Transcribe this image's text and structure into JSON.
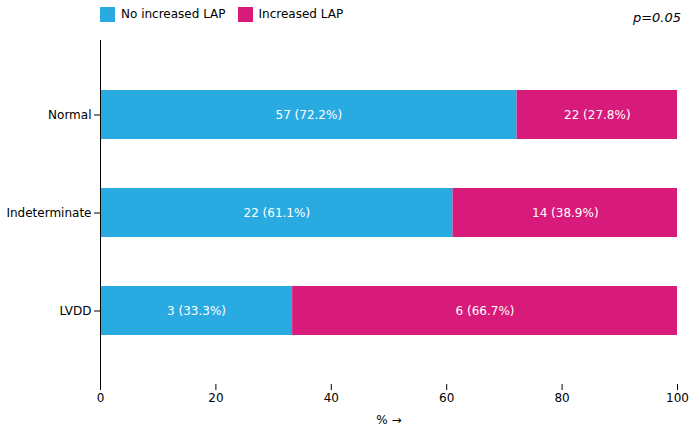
{
  "chart_data": {
    "type": "bar",
    "orientation": "horizontal",
    "stacked": true,
    "categories": [
      "Normal",
      "Indeterminate",
      "LVDD"
    ],
    "series": [
      {
        "name": "No increased LAP",
        "color": "#29ABE2",
        "values": [
          72.2,
          61.1,
          33.3
        ],
        "value_labels": [
          "57 (72.2%)",
          "22 (61.1%)",
          "3 (33.3%)"
        ]
      },
      {
        "name": "Increased LAP",
        "color": "#D81B7B",
        "values": [
          27.8,
          38.9,
          66.7
        ],
        "value_labels": [
          "22 (27.8%)",
          "14 (38.9%)",
          "6 (66.7%)"
        ]
      }
    ],
    "xlabel": "%",
    "xlim": [
      0,
      100
    ],
    "xticks": [
      0,
      20,
      40,
      60,
      80,
      100
    ],
    "data_labels": true,
    "legend": "upper left",
    "grid": false,
    "annotations": [
      "p=0.05"
    ]
  }
}
